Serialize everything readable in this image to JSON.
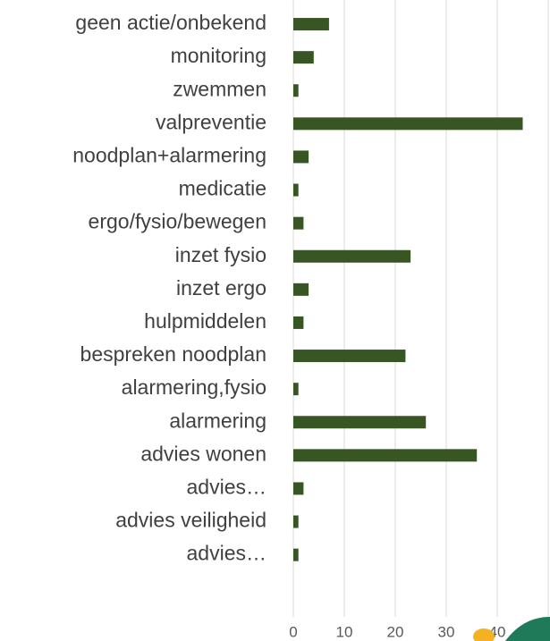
{
  "chart_data": {
    "type": "bar",
    "orientation": "horizontal",
    "categories": [
      "geen actie/onbekend",
      "monitoring",
      "zwemmen",
      "valpreventie",
      "noodplan+alarmering",
      "medicatie",
      "ergo/fysio/bewegen",
      "inzet fysio",
      "inzet ergo",
      "hulpmiddelen",
      "bespreken noodplan",
      "alarmering,fysio",
      "alarmering",
      "advies wonen",
      "advies…",
      "advies veiligheid",
      "advies…"
    ],
    "values": [
      7,
      4,
      1,
      45,
      3,
      1,
      2,
      23,
      3,
      2,
      22,
      1,
      26,
      36,
      2,
      1,
      1
    ],
    "color": "#375623",
    "xlim": [
      0,
      50
    ],
    "xticks": [
      0,
      10,
      20,
      30,
      40,
      50
    ],
    "grid": true
  }
}
